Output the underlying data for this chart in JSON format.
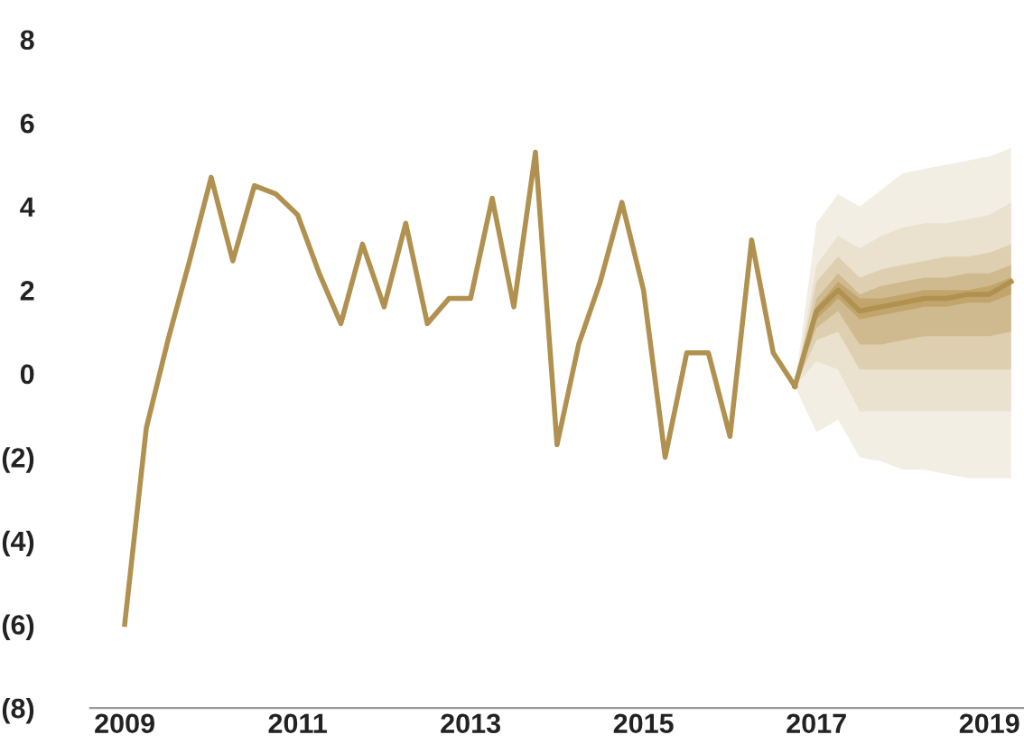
{
  "chart_data": {
    "type": "line",
    "xlim": [
      2008.6,
      2019.4
    ],
    "xticks": [
      2009,
      2011,
      2013,
      2015,
      2017,
      2019
    ],
    "ylim": [
      -8,
      8
    ],
    "yticks": [
      {
        "value": 8,
        "label": "8"
      },
      {
        "value": 6,
        "label": "6"
      },
      {
        "value": 4,
        "label": "4"
      },
      {
        "value": 2,
        "label": "2"
      },
      {
        "value": 0,
        "label": "0"
      },
      {
        "value": -2,
        "label": "(2)"
      },
      {
        "value": -4,
        "label": "(4)"
      },
      {
        "value": -6,
        "label": "(6)"
      },
      {
        "value": -8,
        "label": "(8)"
      }
    ],
    "grid": false,
    "legend": false,
    "series": [
      {
        "color": "#f3eee4",
        "x": [
          2016.75,
          2017.0,
          2017.25,
          2017.5,
          2017.75,
          2018.0,
          2018.25,
          2018.5,
          2018.75,
          2019.0,
          2019.25
        ],
        "values": [
          null,
          null,
          null,
          null,
          null,
          null,
          null,
          null,
          null,
          null,
          null
        ],
        "upper": [
          -0.3,
          3.6,
          4.3,
          4.0,
          4.4,
          4.8,
          4.9,
          5.0,
          5.1,
          5.2,
          5.4
        ],
        "lower": [
          -0.3,
          -1.4,
          -1.1,
          -2.0,
          -2.1,
          -2.3,
          -2.3,
          -2.4,
          -2.5,
          -2.5,
          -2.5
        ]
      },
      {
        "color": "#eae1cf",
        "x": [
          2016.75,
          2017.0,
          2017.25,
          2017.5,
          2017.75,
          2018.0,
          2018.25,
          2018.5,
          2018.75,
          2019.0,
          2019.25
        ],
        "values": [
          null,
          null,
          null,
          null,
          null,
          null,
          null,
          null,
          null,
          null,
          null
        ],
        "upper": [
          -0.3,
          2.6,
          3.3,
          3.0,
          3.3,
          3.5,
          3.6,
          3.6,
          3.7,
          3.8,
          4.1
        ],
        "lower": [
          -0.3,
          0.3,
          0.1,
          -0.9,
          -0.9,
          -0.9,
          -0.9,
          -0.9,
          -0.9,
          -0.9,
          -0.9
        ]
      },
      {
        "color": "#decfb0",
        "x": [
          2016.75,
          2017.0,
          2017.25,
          2017.5,
          2017.75,
          2018.0,
          2018.25,
          2018.5,
          2018.75,
          2019.0,
          2019.25
        ],
        "values": [
          null,
          null,
          null,
          null,
          null,
          null,
          null,
          null,
          null,
          null,
          null
        ],
        "upper": [
          -0.3,
          2.2,
          2.8,
          2.3,
          2.5,
          2.6,
          2.7,
          2.8,
          2.8,
          2.9,
          3.1
        ],
        "lower": [
          -0.3,
          0.8,
          1.0,
          0.1,
          0.1,
          0.1,
          0.1,
          0.1,
          0.1,
          0.1,
          0.1
        ]
      },
      {
        "color": "#cfba8f",
        "x": [
          2016.75,
          2017.0,
          2017.25,
          2017.5,
          2017.75,
          2018.0,
          2018.25,
          2018.5,
          2018.75,
          2019.0,
          2019.25
        ],
        "values": [
          null,
          null,
          null,
          null,
          null,
          null,
          null,
          null,
          null,
          null,
          null
        ],
        "upper": [
          -0.3,
          1.8,
          2.4,
          1.9,
          2.1,
          2.2,
          2.3,
          2.3,
          2.4,
          2.4,
          2.6
        ],
        "lower": [
          -0.3,
          1.1,
          1.5,
          0.7,
          0.7,
          0.8,
          0.9,
          0.9,
          0.9,
          0.9,
          1.0
        ]
      },
      {
        "color": "#c2a56c",
        "x": [
          2016.75,
          2017.0,
          2017.25,
          2017.5,
          2017.75,
          2018.0,
          2018.25,
          2018.5,
          2018.75,
          2019.0,
          2019.25
        ],
        "values": [
          null,
          null,
          null,
          null,
          null,
          null,
          null,
          null,
          null,
          null,
          null
        ],
        "upper": [
          -0.3,
          1.6,
          2.2,
          1.8,
          1.8,
          1.9,
          2.0,
          2.0,
          2.0,
          2.1,
          2.3
        ],
        "lower": [
          -0.3,
          1.3,
          1.8,
          1.3,
          1.4,
          1.5,
          1.6,
          1.6,
          1.7,
          1.7,
          1.9
        ]
      },
      {
        "color": "#b0914f",
        "x": [
          2016.75,
          2017.0,
          2017.25,
          2017.5,
          2017.75,
          2018.0,
          2018.25,
          2018.5,
          2018.75,
          2019.0,
          2019.25
        ],
        "values": [
          -0.3,
          1.5,
          2.0,
          1.5,
          1.6,
          1.7,
          1.8,
          1.8,
          1.9,
          1.9,
          2.2
        ]
      },
      {
        "color": "#b0914f",
        "x": [
          2009.0,
          2009.25,
          2009.5,
          2009.75,
          2010.0,
          2010.25,
          2010.5,
          2010.75,
          2011.0,
          2011.25,
          2011.5,
          2011.75,
          2012.0,
          2012.25,
          2012.5,
          2012.75,
          2013.0,
          2013.25,
          2013.5,
          2013.75,
          2014.0,
          2014.25,
          2014.5,
          2014.75,
          2015.0,
          2015.25,
          2015.5,
          2015.75,
          2016.0,
          2016.25,
          2016.5,
          2016.75
        ],
        "values": [
          -6.0,
          -1.3,
          0.8,
          2.7,
          4.7,
          2.7,
          4.5,
          4.3,
          3.8,
          2.4,
          1.2,
          3.1,
          1.6,
          3.6,
          1.2,
          1.8,
          1.8,
          4.2,
          1.6,
          5.3,
          -1.7,
          0.7,
          2.2,
          4.1,
          2.0,
          -2.0,
          0.5,
          0.5,
          -1.5,
          3.2,
          0.5,
          -0.3
        ]
      }
    ]
  }
}
